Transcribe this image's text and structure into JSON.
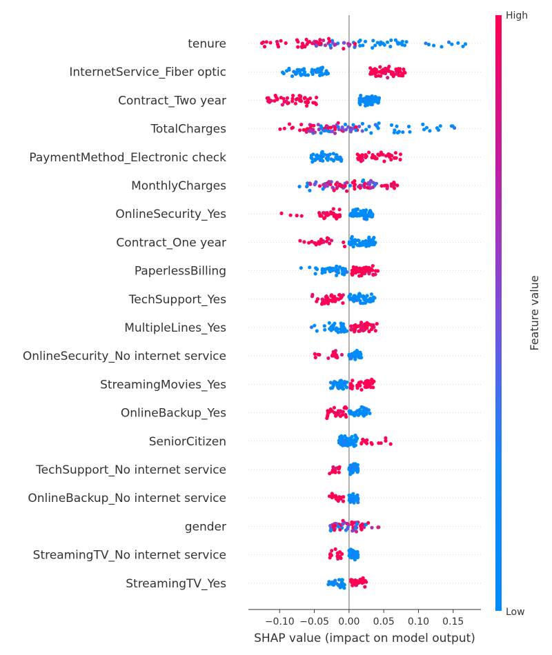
{
  "chart_data": {
    "type": "scatter",
    "title": "",
    "xlabel": "SHAP value (impact on model output)",
    "ylabel": "",
    "xlim": [
      -0.145,
      0.19
    ],
    "xticks": [
      -0.1,
      -0.05,
      0.0,
      0.05,
      0.1,
      0.15
    ],
    "xtick_labels": [
      "−0.10",
      "−0.05",
      "0.00",
      "0.05",
      "0.10",
      "0.15"
    ],
    "grid": false,
    "colorbar": {
      "title": "Feature value",
      "high_label": "High",
      "low_label": "Low",
      "low_color": "#008bfb",
      "high_color": "#ff0052"
    },
    "features": [
      {
        "name": "tenure",
        "clusters": [
          {
            "range": [
              -0.13,
              -0.09
            ],
            "n": 10,
            "color": "high"
          },
          {
            "range": [
              -0.085,
              -0.045
            ],
            "n": 14,
            "color": "high"
          },
          {
            "range": [
              -0.05,
              -0.02
            ],
            "n": 22,
            "color": "mixed"
          },
          {
            "range": [
              -0.02,
              0.01
            ],
            "n": 12,
            "color": "mixed"
          },
          {
            "range": [
              0.01,
              0.06
            ],
            "n": 16,
            "color": "low"
          },
          {
            "range": [
              0.06,
              0.185
            ],
            "n": 18,
            "color": "low"
          }
        ]
      },
      {
        "name": "InternetService_Fiber optic",
        "clusters": [
          {
            "range": [
              -0.097,
              -0.03
            ],
            "n": 45,
            "color": "low"
          },
          {
            "range": [
              0.03,
              0.083
            ],
            "n": 55,
            "color": "high"
          }
        ]
      },
      {
        "name": "Contract_Two year",
        "clusters": [
          {
            "range": [
              -0.118,
              -0.045
            ],
            "n": 45,
            "color": "high"
          },
          {
            "range": [
              0.015,
              0.045
            ],
            "n": 70,
            "color": "low"
          }
        ]
      },
      {
        "name": "TotalCharges",
        "clusters": [
          {
            "range": [
              -0.1,
              -0.06
            ],
            "n": 8,
            "color": "high"
          },
          {
            "range": [
              -0.065,
              -0.02
            ],
            "n": 40,
            "color": "mixed"
          },
          {
            "range": [
              -0.02,
              0.02
            ],
            "n": 25,
            "color": "mixed"
          },
          {
            "range": [
              0.02,
              0.09
            ],
            "n": 16,
            "color": "low"
          },
          {
            "range": [
              0.1,
              0.16
            ],
            "n": 10,
            "color": "low"
          }
        ]
      },
      {
        "name": "PaymentMethod_Electronic check",
        "clusters": [
          {
            "range": [
              -0.055,
              -0.01
            ],
            "n": 50,
            "color": "low"
          },
          {
            "range": [
              0.012,
              0.075
            ],
            "n": 45,
            "color": "high"
          }
        ]
      },
      {
        "name": "MonthlyCharges",
        "clusters": [
          {
            "range": [
              -0.1,
              -0.06
            ],
            "n": 3,
            "color": "mixed"
          },
          {
            "range": [
              -0.06,
              -0.01
            ],
            "n": 30,
            "color": "mixed"
          },
          {
            "range": [
              -0.01,
              0.04
            ],
            "n": 40,
            "color": "mixed"
          },
          {
            "range": [
              0.04,
              0.07
            ],
            "n": 14,
            "color": "high"
          }
        ]
      },
      {
        "name": "OnlineSecurity_Yes",
        "clusters": [
          {
            "range": [
              -0.11,
              -0.06
            ],
            "n": 4,
            "color": "high"
          },
          {
            "range": [
              -0.045,
              -0.01
            ],
            "n": 30,
            "color": "high"
          },
          {
            "range": [
              0.0,
              0.035
            ],
            "n": 60,
            "color": "low"
          }
        ]
      },
      {
        "name": "Contract_One year",
        "clusters": [
          {
            "range": [
              -0.087,
              -0.05
            ],
            "n": 4,
            "color": "high"
          },
          {
            "range": [
              -0.05,
              -0.025
            ],
            "n": 18,
            "color": "high"
          },
          {
            "range": [
              -0.01,
              -0.005
            ],
            "n": 2,
            "color": "high"
          },
          {
            "range": [
              0.0,
              0.038
            ],
            "n": 55,
            "color": "low"
          }
        ]
      },
      {
        "name": "PaperlessBilling",
        "clusters": [
          {
            "range": [
              -0.07,
              -0.045
            ],
            "n": 6,
            "color": "low"
          },
          {
            "range": [
              -0.04,
              -0.003
            ],
            "n": 40,
            "color": "low"
          },
          {
            "range": [
              0.003,
              0.035
            ],
            "n": 50,
            "color": "high"
          },
          {
            "range": [
              0.035,
              0.045
            ],
            "n": 3,
            "color": "high"
          }
        ]
      },
      {
        "name": "TechSupport_Yes",
        "clusters": [
          {
            "range": [
              -0.055,
              -0.04
            ],
            "n": 4,
            "color": "high"
          },
          {
            "range": [
              -0.04,
              -0.008
            ],
            "n": 40,
            "color": "high"
          },
          {
            "range": [
              0.0,
              0.038
            ],
            "n": 50,
            "color": "low"
          }
        ]
      },
      {
        "name": "MultipleLines_Yes",
        "clusters": [
          {
            "range": [
              -0.055,
              -0.03
            ],
            "n": 5,
            "color": "low"
          },
          {
            "range": [
              -0.03,
              -0.002
            ],
            "n": 30,
            "color": "low"
          },
          {
            "range": [
              0.002,
              0.035
            ],
            "n": 45,
            "color": "high"
          },
          {
            "range": [
              0.035,
              0.046
            ],
            "n": 3,
            "color": "high"
          }
        ]
      },
      {
        "name": "OnlineSecurity_No internet service",
        "clusters": [
          {
            "range": [
              -0.05,
              -0.04
            ],
            "n": 4,
            "color": "high"
          },
          {
            "range": [
              -0.03,
              -0.01
            ],
            "n": 14,
            "color": "high"
          },
          {
            "range": [
              0.0,
              0.018
            ],
            "n": 40,
            "color": "low"
          }
        ]
      },
      {
        "name": "StreamingMovies_Yes",
        "clusters": [
          {
            "range": [
              -0.028,
              -0.002
            ],
            "n": 40,
            "color": "low"
          },
          {
            "range": [
              0.002,
              0.036
            ],
            "n": 40,
            "color": "high"
          }
        ]
      },
      {
        "name": "OnlineBackup_Yes",
        "clusters": [
          {
            "range": [
              -0.032,
              -0.002
            ],
            "n": 30,
            "color": "high"
          },
          {
            "range": [
              0.0,
              0.03
            ],
            "n": 40,
            "color": "low"
          }
        ]
      },
      {
        "name": "SeniorCitizen",
        "clusters": [
          {
            "range": [
              -0.015,
              0.012
            ],
            "n": 65,
            "color": "low"
          },
          {
            "range": [
              0.012,
              0.06
            ],
            "n": 14,
            "color": "high"
          }
        ]
      },
      {
        "name": "TechSupport_No internet service",
        "clusters": [
          {
            "range": [
              -0.028,
              -0.01
            ],
            "n": 16,
            "color": "high"
          },
          {
            "range": [
              0.0,
              0.013
            ],
            "n": 45,
            "color": "low"
          }
        ]
      },
      {
        "name": "OnlineBackup_No internet service",
        "clusters": [
          {
            "range": [
              -0.03,
              -0.005
            ],
            "n": 16,
            "color": "high"
          },
          {
            "range": [
              0.0,
              0.013
            ],
            "n": 45,
            "color": "low"
          }
        ]
      },
      {
        "name": "gender",
        "clusters": [
          {
            "range": [
              -0.028,
              0.025
            ],
            "n": 60,
            "color": "mixed"
          },
          {
            "range": [
              0.025,
              0.043
            ],
            "n": 4,
            "color": "mixed"
          }
        ]
      },
      {
        "name": "StreamingTV_No internet service",
        "clusters": [
          {
            "range": [
              -0.028,
              -0.01
            ],
            "n": 16,
            "color": "high"
          },
          {
            "range": [
              0.0,
              0.013
            ],
            "n": 45,
            "color": "low"
          }
        ]
      },
      {
        "name": "StreamingTV_Yes",
        "clusters": [
          {
            "range": [
              -0.032,
              -0.002
            ],
            "n": 25,
            "color": "low"
          },
          {
            "range": [
              0.002,
              0.027
            ],
            "n": 35,
            "color": "high"
          }
        ]
      }
    ]
  }
}
